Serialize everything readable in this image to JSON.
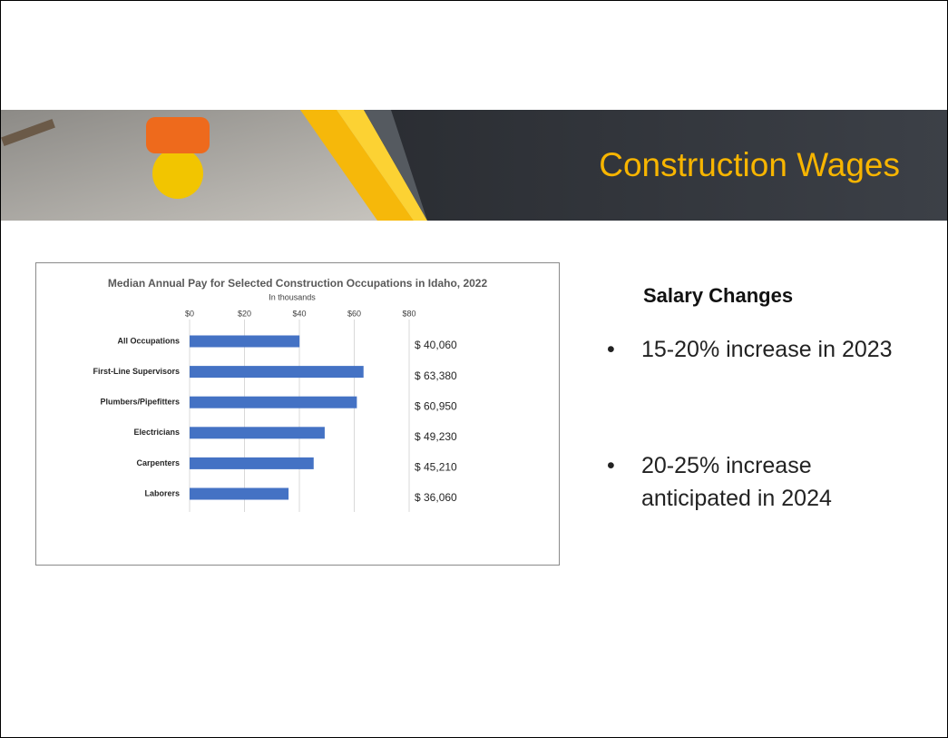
{
  "slide_title": "Construction Wages",
  "side_heading": "Salary Changes",
  "bullets": [
    "15-20% increase in 2023",
    "20-25% increase anticipated in 2024"
  ],
  "chart_data": {
    "type": "hbar",
    "title": "Median Annual Pay for Selected Construction Occupations in Idaho, 2022",
    "subtitle": "In thousands",
    "categories": [
      "All Occupations",
      "First-Line Supervisors",
      "Plumbers/Pipefitters",
      "Electricians",
      "Carpenters",
      "Laborers"
    ],
    "values": [
      40.06,
      63.38,
      60.95,
      49.23,
      45.21,
      36.06
    ],
    "value_labels": [
      "$ 40,060",
      "$ 63,380",
      "$ 60,950",
      "$ 49,230",
      "$ 45,210",
      "$ 36,060"
    ],
    "color": "#4472c4",
    "xlim": [
      0,
      80
    ],
    "xticks": [
      {
        "value": 0,
        "label": "$0"
      },
      {
        "value": 20,
        "label": "$20"
      },
      {
        "value": 40,
        "label": "$40"
      },
      {
        "value": 60,
        "label": "$60"
      },
      {
        "value": 80,
        "label": "$80"
      }
    ],
    "grid": true
  }
}
